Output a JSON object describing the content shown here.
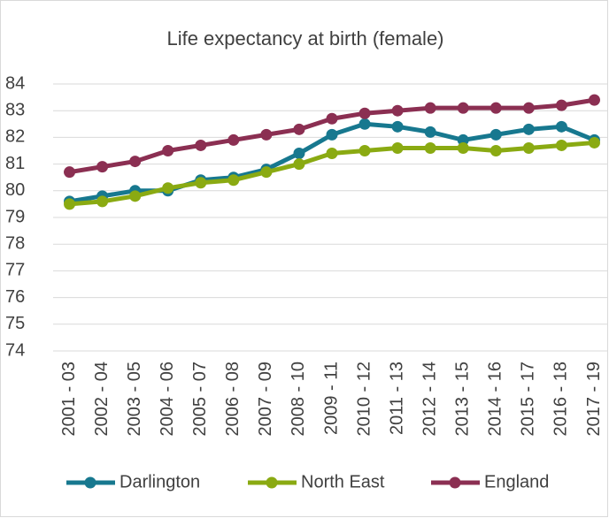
{
  "chart_data": {
    "type": "line",
    "title": "Life expectancy at birth (female)",
    "categories": [
      "2001 - 03",
      "2002 - 04",
      "2003 - 05",
      "2004 - 06",
      "2005 - 07",
      "2006 - 08",
      "2007 - 09",
      "2008 - 10",
      "2009 - 11",
      "2010 - 12",
      "2011 - 13",
      "2012 - 14",
      "2013 - 15",
      "2014 - 16",
      "2015 - 17",
      "2016 - 18",
      "2017 - 19"
    ],
    "series": [
      {
        "name": "Darlington",
        "color": "#17788f",
        "values": [
          79.6,
          79.8,
          80.0,
          80.0,
          80.4,
          80.5,
          80.8,
          81.4,
          82.1,
          82.5,
          82.4,
          82.2,
          81.9,
          82.1,
          82.3,
          82.4,
          81.9
        ]
      },
      {
        "name": "North East",
        "color": "#8aaa12",
        "values": [
          79.5,
          79.6,
          79.8,
          80.1,
          80.3,
          80.4,
          80.7,
          81.0,
          81.4,
          81.5,
          81.6,
          81.6,
          81.6,
          81.5,
          81.6,
          81.7,
          81.8
        ]
      },
      {
        "name": "England",
        "color": "#8b2f52",
        "values": [
          80.7,
          80.9,
          81.1,
          81.5,
          81.7,
          81.9,
          82.1,
          82.3,
          82.7,
          82.9,
          83.0,
          83.1,
          83.1,
          83.1,
          83.1,
          83.2,
          83.4
        ]
      }
    ],
    "ylim": [
      74,
      84
    ],
    "yticks": [
      74,
      75,
      76,
      77,
      78,
      79,
      80,
      81,
      82,
      83,
      84
    ],
    "grid": true,
    "legend": "bottom"
  }
}
